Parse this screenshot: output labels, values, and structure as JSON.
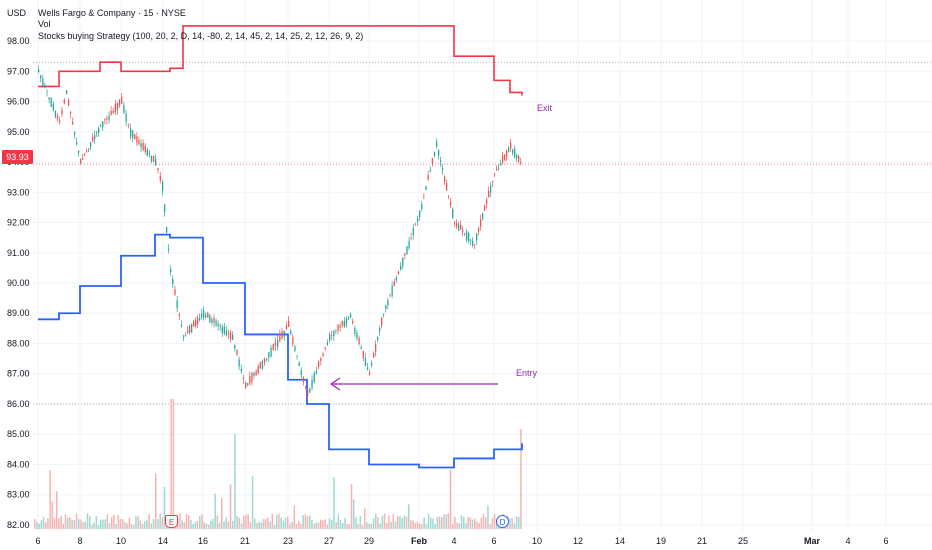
{
  "header": {
    "currency": "USD",
    "symbol_line": "Wells Fargo & Company · 15 · NYSE",
    "vol_label": "Vol",
    "strategy_line": "Stocks buying Strategy (100, 20, 2, D, 14, -80, 2, 14, 45, 2, 14, 25, 2, 12, 26, 9, 2)"
  },
  "last_price": {
    "label": "93.93",
    "value": 93.93,
    "color": "#f23645"
  },
  "annotations": {
    "exit": "Exit",
    "entry": "Entry",
    "color": "#9c27b0"
  },
  "events": {
    "earnings": "E",
    "dividend": "D"
  },
  "colors": {
    "up": "#26a69a",
    "down": "#ef5350",
    "upper_band": "#f23645",
    "lower_band": "#2962ff",
    "volume_up": "#9fd9d2",
    "volume_down": "#f7b3b1"
  },
  "chart_data": {
    "type": "candlestick",
    "interval": "15",
    "y_ticks": [
      "98.00",
      "97.00",
      "96.00",
      "95.00",
      "94.00",
      "93.00",
      "92.00",
      "91.00",
      "90.00",
      "89.00",
      "88.00",
      "87.00",
      "86.00",
      "85.00",
      "84.00",
      "83.00",
      "82.00"
    ],
    "ylim": [
      81.8,
      98.2
    ],
    "x_ticks": [
      "6",
      "8",
      "10",
      "14",
      "16",
      "21",
      "23",
      "27",
      "29",
      "Feb",
      "4",
      "6",
      "10",
      "12",
      "14",
      "19",
      "21",
      "25",
      "Mar",
      "4",
      "6"
    ],
    "horizontal_levels": [
      97.3,
      86.0
    ],
    "price_path": [
      {
        "x": "6",
        "y": 97.0
      },
      {
        "x": "7",
        "y": 95.3
      },
      {
        "x": "7.5",
        "y": 96.3
      },
      {
        "x": "8",
        "y": 94.0
      },
      {
        "x": "9",
        "y": 95.2
      },
      {
        "x": "10",
        "y": 96.0
      },
      {
        "x": "11",
        "y": 95.0
      },
      {
        "x": "13",
        "y": 94.0
      },
      {
        "x": "13.5",
        "y": 93.2
      },
      {
        "x": "14",
        "y": 90.4
      },
      {
        "x": "15",
        "y": 88.2
      },
      {
        "x": "16",
        "y": 89.0
      },
      {
        "x": "20",
        "y": 88.2
      },
      {
        "x": "21",
        "y": 86.6
      },
      {
        "x": "22",
        "y": 87.5
      },
      {
        "x": "23",
        "y": 88.6
      },
      {
        "x": "24",
        "y": 86.3
      },
      {
        "x": "27",
        "y": 88.2
      },
      {
        "x": "28",
        "y": 88.9
      },
      {
        "x": "29",
        "y": 87.0
      },
      {
        "x": "30",
        "y": 89.0
      },
      {
        "x": "31",
        "y": 90.5
      },
      {
        "x": "Feb",
        "y": 92.3
      },
      {
        "x": "3",
        "y": 94.6
      },
      {
        "x": "4",
        "y": 92.0
      },
      {
        "x": "5",
        "y": 91.3
      },
      {
        "x": "6",
        "y": 93.6
      },
      {
        "x": "7",
        "y": 94.5
      },
      {
        "x": "7.5",
        "y": 93.9
      }
    ],
    "upper_band": [
      {
        "x": "6",
        "y": 96.5
      },
      {
        "x": "7",
        "y": 97.0
      },
      {
        "x": "9",
        "y": 97.3
      },
      {
        "x": "10",
        "y": 97.0
      },
      {
        "x": "14",
        "y": 97.1
      },
      {
        "x": "15",
        "y": 98.5
      },
      {
        "x": "22",
        "y": 98.5
      },
      {
        "x": "Feb",
        "y": 98.5
      },
      {
        "x": "4",
        "y": 97.5
      },
      {
        "x": "6",
        "y": 96.7
      },
      {
        "x": "7",
        "y": 96.3
      },
      {
        "x": "7.5",
        "y": 96.2
      }
    ],
    "lower_band": [
      {
        "x": "6",
        "y": 88.8
      },
      {
        "x": "7",
        "y": 89.0
      },
      {
        "x": "8",
        "y": 89.9
      },
      {
        "x": "10",
        "y": 90.9
      },
      {
        "x": "13",
        "y": 91.6
      },
      {
        "x": "14",
        "y": 91.5
      },
      {
        "x": "16",
        "y": 90.0
      },
      {
        "x": "21",
        "y": 88.3
      },
      {
        "x": "23",
        "y": 86.8
      },
      {
        "x": "24",
        "y": 86.0
      },
      {
        "x": "27",
        "y": 84.5
      },
      {
        "x": "29",
        "y": 84.0
      },
      {
        "x": "Feb",
        "y": 83.9
      },
      {
        "x": "4",
        "y": 84.2
      },
      {
        "x": "6",
        "y": 84.5
      },
      {
        "x": "7.5",
        "y": 84.7
      }
    ]
  }
}
